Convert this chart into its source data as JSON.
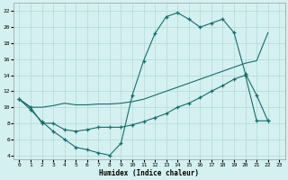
{
  "xlabel": "Humidex (Indice chaleur)",
  "bg_color": "#d5f0f0",
  "grid_color": "#b0d8d8",
  "line_color": "#1a6b6b",
  "xlim": [
    -0.5,
    23.5
  ],
  "ylim": [
    3.5,
    23
  ],
  "xticks": [
    0,
    1,
    2,
    3,
    4,
    5,
    6,
    7,
    8,
    9,
    10,
    11,
    12,
    13,
    14,
    15,
    16,
    17,
    18,
    19,
    20,
    21,
    22,
    23
  ],
  "yticks": [
    4,
    6,
    8,
    10,
    12,
    14,
    16,
    18,
    20,
    22
  ],
  "line1_x": [
    0,
    1,
    2,
    3,
    4,
    5,
    6,
    7,
    8,
    9,
    10,
    11,
    12,
    13,
    14,
    15,
    16,
    17,
    18,
    19,
    20,
    21,
    22
  ],
  "line1_y": [
    11.0,
    9.7,
    8.2,
    7.0,
    6.0,
    5.0,
    4.7,
    4.3,
    4.0,
    5.5,
    11.5,
    15.8,
    19.2,
    21.3,
    21.8,
    21.0,
    20.0,
    20.5,
    21.0,
    19.3,
    14.2,
    11.5,
    8.3
  ],
  "line2_x": [
    0,
    1,
    2,
    3,
    4,
    5,
    6,
    7,
    8,
    9,
    10,
    11,
    12,
    13,
    14,
    15,
    16,
    17,
    18,
    19,
    20,
    21,
    22
  ],
  "line2_y": [
    11.0,
    10.0,
    8.0,
    8.0,
    7.2,
    7.0,
    7.2,
    7.5,
    7.5,
    7.5,
    7.8,
    8.2,
    8.7,
    9.2,
    10.0,
    10.5,
    11.2,
    12.0,
    12.7,
    13.5,
    14.0,
    8.3,
    8.3
  ],
  "line3_x": [
    0,
    1,
    2,
    3,
    4,
    5,
    6,
    7,
    8,
    9,
    10,
    11,
    12,
    13,
    14,
    15,
    16,
    17,
    18,
    19,
    20,
    21,
    22
  ],
  "line3_y": [
    11.0,
    10.0,
    10.0,
    10.2,
    10.5,
    10.3,
    10.3,
    10.4,
    10.4,
    10.5,
    10.7,
    11.0,
    11.5,
    12.0,
    12.5,
    13.0,
    13.5,
    14.0,
    14.5,
    15.0,
    15.5,
    15.8,
    19.3
  ]
}
